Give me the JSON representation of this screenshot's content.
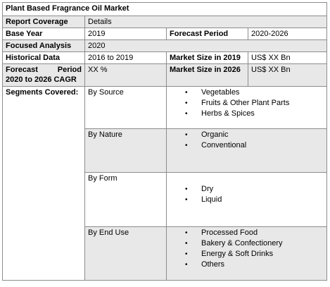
{
  "title": "Plant Based Fragrance Oil Market",
  "rows": {
    "report_coverage": {
      "label": "Report Coverage",
      "value": "Details"
    },
    "base_year": {
      "label": "Base Year",
      "value": "2019",
      "label2": "Forecast Period",
      "value2": "2020-2026"
    },
    "focused_analysis": {
      "label": "Focused Analysis",
      "value": "2020"
    },
    "historical_data": {
      "label": "Historical Data",
      "value": "2016 to 2019",
      "label2": "Market Size in 2019",
      "value2": "US$ XX Bn"
    },
    "forecast": {
      "label_a": "Forecast",
      "label_b": "Period",
      "label_c": "2020 to 2026 CAGR",
      "value": "XX %",
      "label2": "Market Size in 2026",
      "value2": "US$ XX Bn"
    }
  },
  "segments": {
    "label": "Segments Covered:",
    "by_source": {
      "label": "By Source",
      "items": [
        "Vegetables",
        "Fruits & Other Plant Parts",
        "Herbs & Spices"
      ]
    },
    "by_nature": {
      "label": "By Nature",
      "items": [
        "Organic",
        "Conventional"
      ]
    },
    "by_form": {
      "label": "By Form",
      "items": [
        "Dry",
        "Liquid"
      ]
    },
    "by_end_use": {
      "label": "By End Use",
      "items": [
        "Processed Food",
        "Bakery & Confectionery",
        "Energy & Soft Drinks",
        "Others"
      ]
    }
  },
  "bullet": "•"
}
